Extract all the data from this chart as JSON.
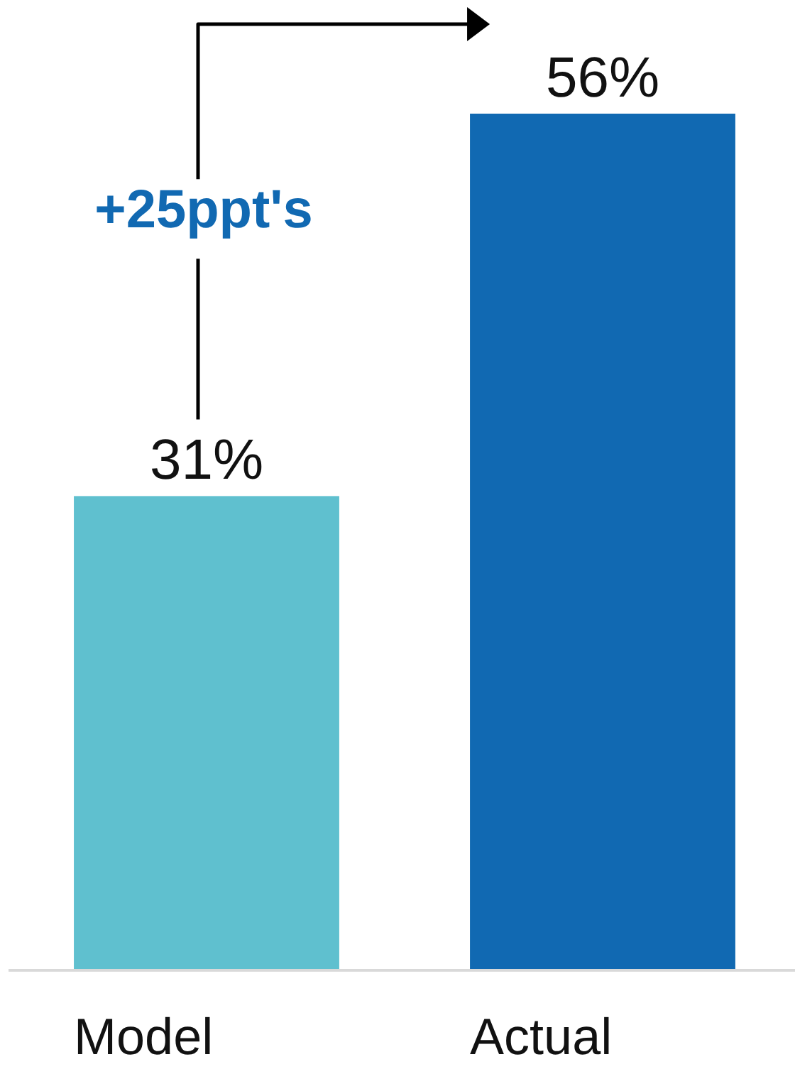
{
  "chart_data": {
    "type": "bar",
    "categories": [
      "Model",
      "Actual"
    ],
    "values": [
      31,
      56
    ],
    "colors": [
      "#5fc0cf",
      "#1169b2"
    ],
    "value_labels": [
      "31%",
      "56%"
    ],
    "annotations": [
      "+25ppt's"
    ]
  }
}
